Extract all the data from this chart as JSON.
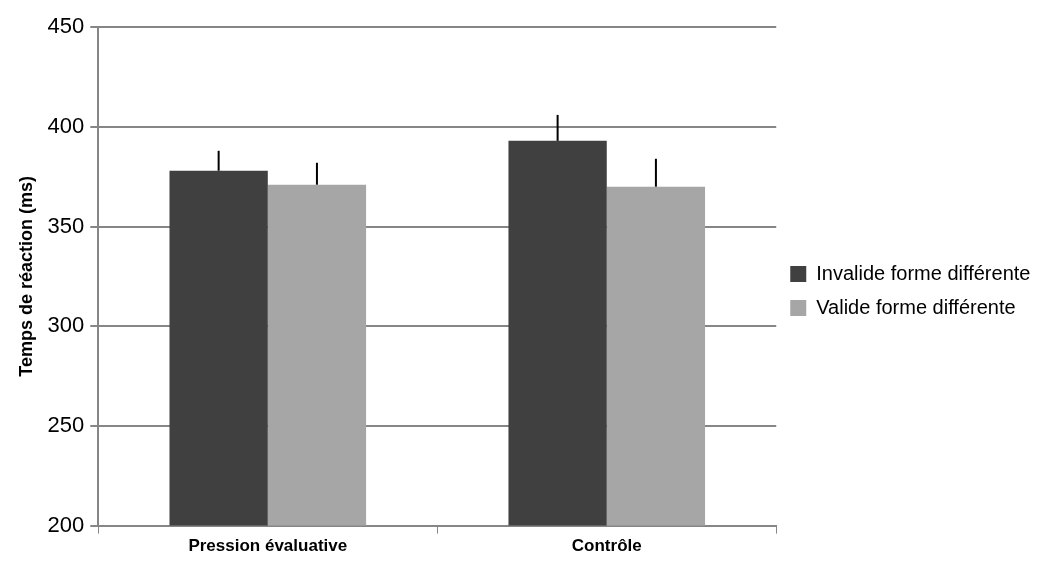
{
  "chart_data": {
    "type": "bar",
    "ylabel": "Temps de réaction (ms)",
    "categories": [
      "Pression évaluative",
      "Contrôle"
    ],
    "series": [
      {
        "name": "Invalide forme différente",
        "color": "#404040",
        "values": [
          378,
          393
        ],
        "errors": [
          [
            378,
            388
          ],
          [
            393,
            406
          ]
        ]
      },
      {
        "name": "Valide forme différente",
        "color": "#a6a6a6",
        "values": [
          371,
          370
        ],
        "errors": [
          [
            371,
            382
          ],
          [
            370,
            384
          ]
        ]
      }
    ],
    "ylim": [
      200,
      450
    ],
    "yticks": [
      200,
      250,
      300,
      350,
      400,
      450
    ],
    "grid": "y",
    "legend": "right"
  }
}
